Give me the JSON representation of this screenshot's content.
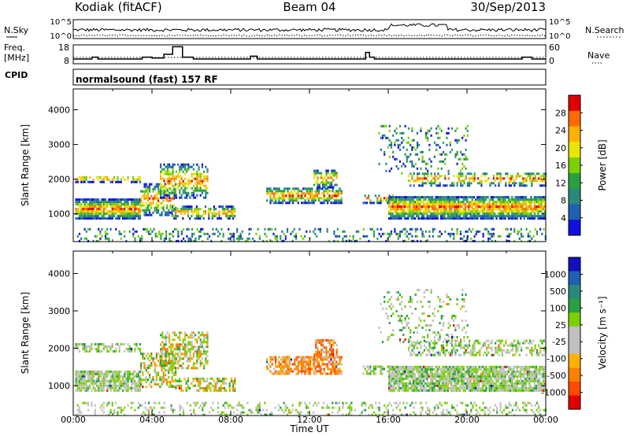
{
  "header": {
    "title_left": "Kodiak (fitACF)",
    "title_center": "Beam 04",
    "title_right": "30/Sep/2013"
  },
  "noise_panel": {
    "left_label": "N.Sky",
    "right_label": "N.Search",
    "left_ticks": [
      "10^5",
      "10^0"
    ],
    "right_ticks": [
      "10^5",
      "10^0"
    ]
  },
  "freq_panel": {
    "left_label_line1": "Freq.",
    "left_label_line2": "[MHz]",
    "right_label": "Nave",
    "left_ticks": [
      "18",
      "8"
    ],
    "right_ticks": [
      "60",
      "0"
    ],
    "freq_steps": [
      {
        "t": 0.0,
        "v": 10.5
      },
      {
        "t": 0.95,
        "v": 11.5
      },
      {
        "t": 1.25,
        "v": 10.5
      },
      {
        "t": 3.5,
        "v": 11.5
      },
      {
        "t": 4.0,
        "v": 11.0
      },
      {
        "t": 4.6,
        "v": 13.0
      },
      {
        "t": 5.05,
        "v": 17.0
      },
      {
        "t": 5.55,
        "v": 11.5
      },
      {
        "t": 6.1,
        "v": 10.5
      },
      {
        "t": 9.0,
        "v": 12.0
      },
      {
        "t": 9.35,
        "v": 10.5
      },
      {
        "t": 14.85,
        "v": 14.0
      },
      {
        "t": 15.05,
        "v": 11.5
      },
      {
        "t": 15.3,
        "v": 10.5
      },
      {
        "t": 22.8,
        "v": 11.5
      },
      {
        "t": 23.3,
        "v": 10.5
      },
      {
        "t": 24.0,
        "v": 10.5
      }
    ]
  },
  "cpid": {
    "label": "CPID",
    "mode_text": "normalsound (fast) 157 RF"
  },
  "chart_data": [
    {
      "type": "heatmap",
      "name": "Power",
      "ylabel": "Slant Range [km]",
      "ylim": [
        200,
        4600
      ],
      "yticks": [
        "4000",
        "3000",
        "2000",
        "1000"
      ],
      "xlim": [
        0,
        24
      ],
      "colorbar_label": "Power [dB]",
      "colorbar_ticks": [
        "28",
        "24",
        "20",
        "16",
        "12",
        "8",
        "4"
      ],
      "colorbar_colors": [
        "#e00000",
        "#ff6a00",
        "#ffb000",
        "#e6e600",
        "#7ad000",
        "#2aa040",
        "#2a8a7a",
        "#2060b0",
        "#1010e0"
      ],
      "regions": [
        {
          "t0": 0.1,
          "t1": 3.4,
          "r0": 900,
          "r1": 1450,
          "density": 0.9
        },
        {
          "t0": 0.1,
          "t1": 3.4,
          "r0": 1950,
          "r1": 2150,
          "density": 0.6
        },
        {
          "t0": 3.4,
          "t1": 5.2,
          "r0": 1000,
          "r1": 1900,
          "density": 0.55
        },
        {
          "t0": 4.4,
          "t1": 6.8,
          "r0": 1500,
          "r1": 2500,
          "density": 0.55
        },
        {
          "t0": 5.0,
          "t1": 8.2,
          "r0": 900,
          "r1": 1250,
          "density": 0.6
        },
        {
          "t0": 9.8,
          "t1": 13.6,
          "r0": 1350,
          "r1": 1800,
          "density": 0.7
        },
        {
          "t0": 12.2,
          "t1": 13.4,
          "r0": 1800,
          "r1": 2300,
          "density": 0.6
        },
        {
          "t0": 14.7,
          "t1": 16.2,
          "r0": 1350,
          "r1": 1600,
          "density": 0.5
        },
        {
          "t0": 16.0,
          "t1": 24.0,
          "r0": 900,
          "r1": 1550,
          "density": 0.9
        },
        {
          "t0": 17.0,
          "t1": 24.0,
          "r0": 1850,
          "r1": 2250,
          "density": 0.45
        },
        {
          "t0": 0.1,
          "t1": 24.0,
          "r0": 250,
          "r1": 600,
          "density": 0.25
        },
        {
          "t0": 15.5,
          "t1": 20.0,
          "r0": 2200,
          "r1": 3600,
          "density": 0.18
        }
      ]
    },
    {
      "type": "heatmap",
      "name": "Velocity",
      "ylabel": "Slant Range [km]",
      "ylim": [
        200,
        4600
      ],
      "yticks": [
        "4000",
        "3000",
        "2000",
        "1000"
      ],
      "xlim": [
        0,
        24
      ],
      "xticks": [
        "00:00",
        "04:00",
        "08:00",
        "12:00",
        "16:00",
        "20:00",
        "00:00"
      ],
      "xlabel": "Time UT",
      "colorbar_label": "Velocity [m s⁻¹]",
      "colorbar_ticks": [
        "1000",
        "500",
        "100",
        "25",
        "-25",
        "-100",
        "-500",
        "-1000"
      ],
      "colorbar_colors": [
        "#1010c0",
        "#2060b0",
        "#2a8a7a",
        "#2aa040",
        "#7ad000",
        "#c0c0c0",
        "#c0c0c0",
        "#ffb000",
        "#ff8000",
        "#ff4a00",
        "#e00000"
      ],
      "regions": [
        {
          "t0": 0.1,
          "t1": 3.4,
          "r0": 900,
          "r1": 1450,
          "density": 0.85
        },
        {
          "t0": 0.1,
          "t1": 3.4,
          "r0": 1950,
          "r1": 2150,
          "density": 0.5
        },
        {
          "t0": 3.4,
          "t1": 5.2,
          "r0": 1000,
          "r1": 1900,
          "density": 0.5
        },
        {
          "t0": 4.4,
          "t1": 6.8,
          "r0": 1500,
          "r1": 2500,
          "density": 0.55
        },
        {
          "t0": 5.0,
          "t1": 8.2,
          "r0": 900,
          "r1": 1250,
          "density": 0.5
        },
        {
          "t0": 9.8,
          "t1": 13.6,
          "r0": 1350,
          "r1": 1800,
          "density": 0.7
        },
        {
          "t0": 12.2,
          "t1": 13.4,
          "r0": 1800,
          "r1": 2300,
          "density": 0.6
        },
        {
          "t0": 14.7,
          "t1": 16.2,
          "r0": 1350,
          "r1": 1600,
          "density": 0.5
        },
        {
          "t0": 16.0,
          "t1": 24.0,
          "r0": 900,
          "r1": 1550,
          "density": 0.9
        },
        {
          "t0": 17.0,
          "t1": 24.0,
          "r0": 1850,
          "r1": 2250,
          "density": 0.45
        },
        {
          "t0": 0.1,
          "t1": 24.0,
          "r0": 250,
          "r1": 600,
          "density": 0.25
        },
        {
          "t0": 15.5,
          "t1": 20.0,
          "r0": 2200,
          "r1": 3600,
          "density": 0.18
        }
      ]
    }
  ]
}
